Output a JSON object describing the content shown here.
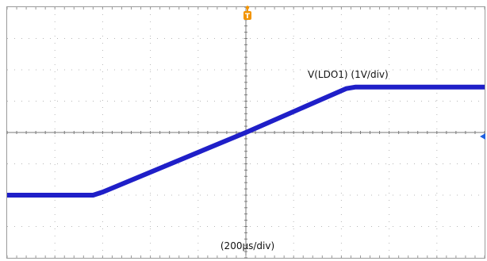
{
  "chart_data": {
    "type": "line",
    "title": "",
    "xlabel": "(200µs/div)",
    "ylabel": "",
    "grid": true,
    "grid_divisions": {
      "x": 10,
      "y": 8
    },
    "x_unit": "µs",
    "y_unit": "V",
    "xlim": [
      -1000,
      1000
    ],
    "ylim": [
      -4,
      4
    ],
    "series": [
      {
        "name": "V(LDO1) (1V/div)",
        "color": "#1f1fc8",
        "x": [
          -1000,
          -640,
          -600,
          0,
          420,
          460,
          1000
        ],
        "y": [
          -2.0,
          -2.0,
          -1.9,
          0.0,
          1.4,
          1.45,
          1.45
        ]
      }
    ],
    "trigger": {
      "marker": "T",
      "color": "#f29400"
    },
    "annotations": [
      {
        "text": "V(LDO1) (1V/div)"
      },
      {
        "text": "(200µs/div)"
      }
    ]
  }
}
